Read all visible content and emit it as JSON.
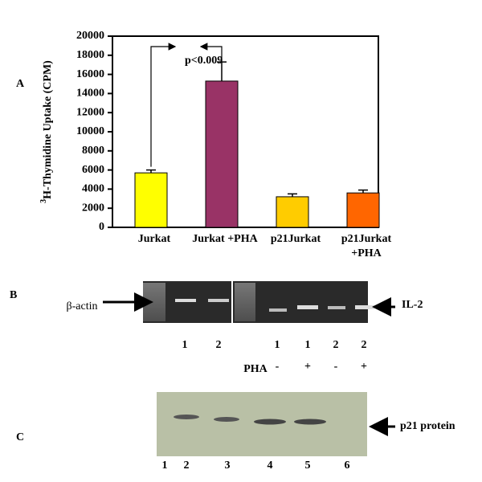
{
  "chart_data": {
    "type": "bar",
    "y_label_sup": "3",
    "y_label": "H-Thymidine Uptake (CPM)",
    "categories": [
      "Jurkat",
      "Jurkat +PHA",
      "p21Jurkat",
      "p21Jurkat +PHA"
    ],
    "values": [
      5700,
      15300,
      3200,
      3600
    ],
    "errors": [
      300,
      2000,
      300,
      300
    ],
    "colors": [
      "#ffff00",
      "#993366",
      "#ffcc00",
      "#ff6600"
    ],
    "ylim": [
      0,
      20000
    ],
    "yticks": [
      0,
      2000,
      4000,
      6000,
      8000,
      10000,
      12000,
      14000,
      16000,
      18000,
      20000
    ],
    "annotation": "p<0.009"
  },
  "panel_labels": [
    "A",
    "B",
    "C"
  ],
  "gel": {
    "left_label": "β-actin",
    "right_label": "IL-2",
    "lanes": [
      "1",
      "2",
      "1",
      "1",
      "2",
      "2"
    ],
    "treatment_label": "PHA",
    "treatments": [
      "-",
      "+",
      "-",
      "+"
    ]
  },
  "blot": {
    "label": "p21 protein",
    "lanes": [
      "1",
      "2",
      "3",
      "4",
      "5",
      "6"
    ]
  }
}
